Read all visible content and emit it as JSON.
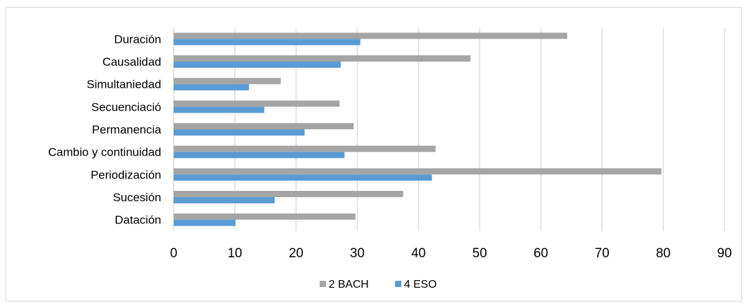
{
  "chart_data": {
    "type": "bar",
    "orientation": "horizontal",
    "categories": [
      "Duración",
      "Causalidad",
      "Simultaniedad",
      "Secuenciació",
      "Permanencia",
      "Cambio y continuidad",
      "Periodización",
      "Sucesión",
      "Datación"
    ],
    "series": [
      {
        "name": "2 BACH",
        "color": "#a5a5a5",
        "values": [
          64.3,
          48.5,
          17.5,
          27.1,
          29.4,
          42.8,
          79.7,
          37.5,
          29.7
        ]
      },
      {
        "name": "4 ESO",
        "color": "#5b9bd5",
        "values": [
          30.5,
          27.3,
          12.3,
          14.8,
          21.4,
          27.9,
          42.2,
          16.5,
          10.1
        ]
      }
    ],
    "xlim": [
      0,
      90
    ],
    "xticks": [
      0,
      10,
      20,
      30,
      40,
      50,
      60,
      70,
      80,
      90
    ],
    "grid": "vertical",
    "legend": "bottom",
    "title": "",
    "xlabel": "",
    "ylabel": ""
  }
}
